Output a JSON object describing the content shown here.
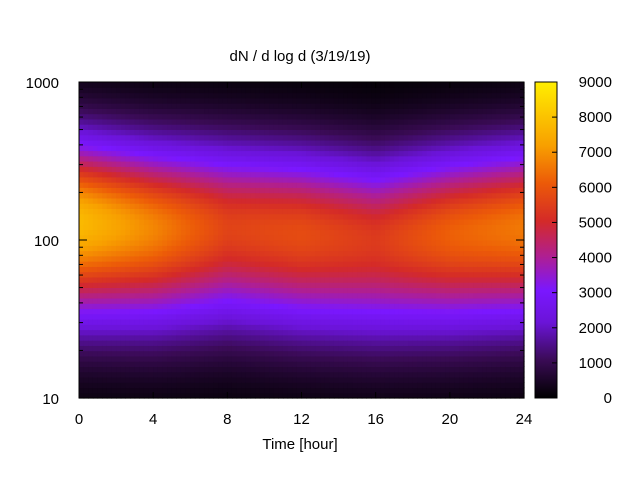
{
  "chart_data": {
    "type": "heatmap",
    "title": "dN / d log d (3/19/19)",
    "xlabel": "Time [hour]",
    "ylabel": "",
    "xlim": [
      0,
      24
    ],
    "ylim": [
      10,
      1000
    ],
    "y_scale": "log",
    "x_ticks": [
      0,
      4,
      8,
      12,
      16,
      20,
      24
    ],
    "y_ticks": [
      10,
      100,
      1000
    ],
    "colorbar": {
      "range": [
        0,
        9000
      ],
      "ticks": [
        0,
        1000,
        2000,
        3000,
        4000,
        5000,
        6000,
        7000,
        8000,
        9000
      ],
      "colormap": [
        "#000000",
        "#5a0f8a",
        "#7a17ff",
        "#c81e70",
        "#e4380c",
        "#f89a00",
        "#ffe600"
      ]
    },
    "grid": false,
    "description_profile": {
      "peak_diameter_values": [
        130,
        120,
        120,
        110,
        100,
        110,
        120
      ],
      "peak_times": [
        0,
        4,
        8,
        12,
        16,
        20,
        24
      ],
      "peak_concentration": [
        7800,
        6800,
        5600,
        5800,
        5400,
        6200,
        6600
      ]
    }
  }
}
